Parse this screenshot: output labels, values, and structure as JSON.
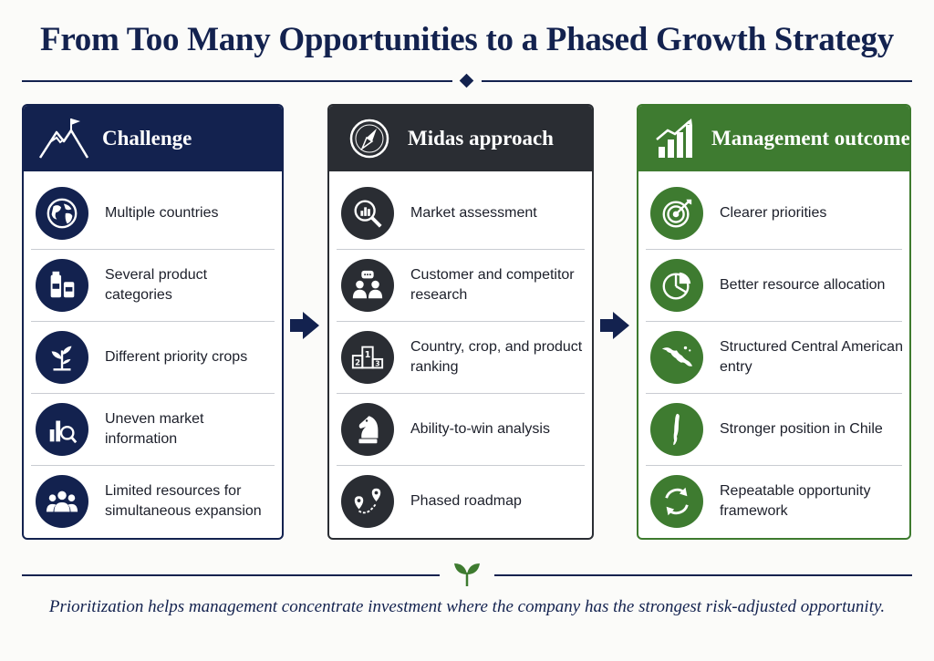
{
  "title": "From Too Many Opportunities to a Phased Growth Strategy",
  "footer": "Prioritization helps management concentrate investment where the company has the strongest risk-adjusted opportunity.",
  "colors": {
    "navy": "#13224f",
    "charcoal": "#2a2d33",
    "green": "#3e7b30"
  },
  "columns": [
    {
      "heading": "Challenge",
      "heading_icon": "mountain-flag-icon",
      "items": [
        {
          "icon": "globe-icon",
          "text": "Multiple countries"
        },
        {
          "icon": "product-packages-icon",
          "text": "Several product categories"
        },
        {
          "icon": "seedling-icon",
          "text": "Different priority crops"
        },
        {
          "icon": "chart-magnifier-icon",
          "text": "Uneven market information"
        },
        {
          "icon": "people-group-icon",
          "text": "Limited resources for simultaneous expansion"
        }
      ]
    },
    {
      "heading": "Midas approach",
      "heading_icon": "compass-icon",
      "items": [
        {
          "icon": "magnifier-chart-icon",
          "text": "Market assessment"
        },
        {
          "icon": "people-speech-icon",
          "text": "Customer and competitor research"
        },
        {
          "icon": "podium-ranking-icon",
          "text": "Country, crop, and product ranking"
        },
        {
          "icon": "chess-knight-icon",
          "text": "Ability-to-win analysis"
        },
        {
          "icon": "route-pins-icon",
          "text": "Phased roadmap"
        }
      ]
    },
    {
      "heading": "Management outcome",
      "heading_icon": "growth-bars-icon",
      "items": [
        {
          "icon": "target-icon",
          "text": "Clearer priorities"
        },
        {
          "icon": "pie-chart-icon",
          "text": "Better resource allocation"
        },
        {
          "icon": "central-america-map-icon",
          "text": "Structured Central American entry"
        },
        {
          "icon": "chile-map-icon",
          "text": "Stronger position in Chile"
        },
        {
          "icon": "cycle-arrows-icon",
          "text": "Repeatable opportunity framework"
        }
      ]
    }
  ],
  "podium_labels": [
    "1",
    "2",
    "3"
  ]
}
